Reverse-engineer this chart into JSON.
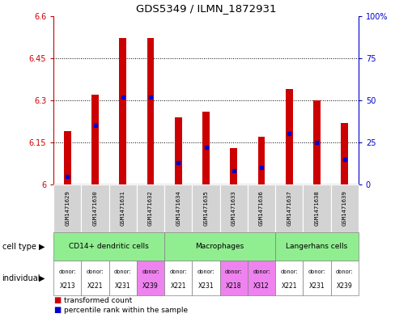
{
  "title": "GDS5349 / ILMN_1872931",
  "samples": [
    "GSM1471629",
    "GSM1471630",
    "GSM1471631",
    "GSM1471632",
    "GSM1471634",
    "GSM1471635",
    "GSM1471633",
    "GSM1471636",
    "GSM1471637",
    "GSM1471638",
    "GSM1471639"
  ],
  "transformed_count": [
    6.19,
    6.32,
    6.52,
    6.52,
    6.24,
    6.26,
    6.13,
    6.17,
    6.34,
    6.3,
    6.22
  ],
  "percentile_rank": [
    5,
    35,
    52,
    52,
    13,
    22,
    8,
    10,
    30,
    25,
    15
  ],
  "ylim_left": [
    6.0,
    6.6
  ],
  "ylim_right": [
    0,
    100
  ],
  "yticks_left": [
    6.0,
    6.15,
    6.3,
    6.45,
    6.6
  ],
  "yticks_right": [
    0,
    25,
    50,
    75,
    100
  ],
  "ytick_labels_left": [
    "6",
    "6.15",
    "6.3",
    "6.45",
    "6.6"
  ],
  "ytick_labels_right": [
    "0",
    "25",
    "50",
    "75",
    "100%"
  ],
  "cell_type_groups": [
    {
      "label": "CD14+ dendritic cells",
      "start": 0,
      "end": 3,
      "color": "#90ee90"
    },
    {
      "label": "Macrophages",
      "start": 4,
      "end": 7,
      "color": "#90ee90"
    },
    {
      "label": "Langerhans cells",
      "start": 8,
      "end": 10,
      "color": "#90ee90"
    }
  ],
  "individual_data": [
    {
      "donor": "X213",
      "color": "#ffffff"
    },
    {
      "donor": "X221",
      "color": "#ffffff"
    },
    {
      "donor": "X231",
      "color": "#ffffff"
    },
    {
      "donor": "X239",
      "color": "#ee82ee"
    },
    {
      "donor": "X221",
      "color": "#ffffff"
    },
    {
      "donor": "X231",
      "color": "#ffffff"
    },
    {
      "donor": "X218",
      "color": "#ee82ee"
    },
    {
      "donor": "X312",
      "color": "#ee82ee"
    },
    {
      "donor": "X221",
      "color": "#ffffff"
    },
    {
      "donor": "X231",
      "color": "#ffffff"
    },
    {
      "donor": "X239",
      "color": "#ffffff"
    }
  ],
  "bar_color": "#cc0000",
  "dot_color": "#0000cc",
  "bar_width": 0.25,
  "sample_bg_color": "#d3d3d3",
  "left_axis_color": "#cc0000",
  "right_axis_color": "#0000cc",
  "fig_width": 5.09,
  "fig_height": 3.93,
  "dpi": 100
}
